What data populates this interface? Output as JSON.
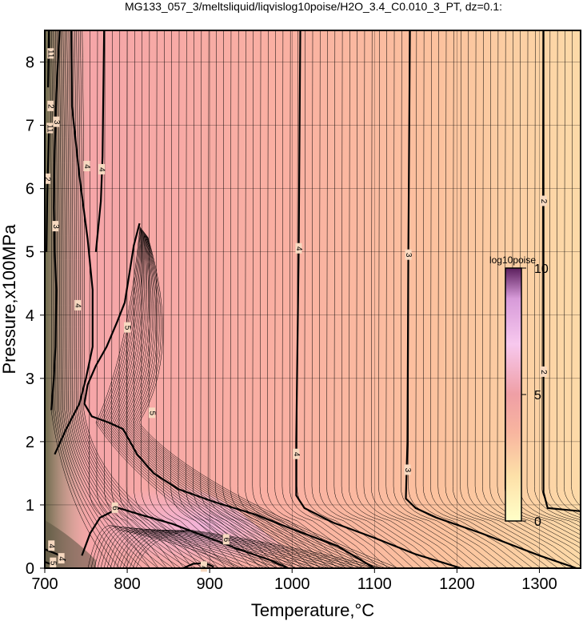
{
  "chart_data": {
    "type": "heatmap",
    "title": "MG133_057_3/meltsliquid/liqvislog10poise/H2O_3.4_C0.010_3_PT, dz=0.1:",
    "xlabel": "Temperature,°C",
    "ylabel": "Pressure,x100MPa",
    "xlim": [
      700,
      1350
    ],
    "ylim": [
      0,
      8.5
    ],
    "x_ticks": [
      "700",
      "800",
      "900",
      "1000",
      "1100",
      "1200",
      "1300"
    ],
    "y_ticks": [
      "0",
      "1",
      "2",
      "3",
      "4",
      "5",
      "6",
      "7",
      "8"
    ],
    "grid": true,
    "colorbar": {
      "title": "log10poise",
      "range": [
        0,
        10
      ],
      "tick_labels": [
        "0",
        "5",
        "10"
      ]
    },
    "contour_interval": 0.1,
    "major_contours": [
      {
        "level": "2",
        "points": [
          [
            1305,
            8.5
          ],
          [
            1305,
            4.0
          ],
          [
            1305,
            1.2
          ],
          [
            1310,
            0.95
          ],
          [
            1350,
            0.9
          ]
        ],
        "labels": [
          [
            1305,
            5.8
          ],
          [
            1305,
            3.1
          ]
        ]
      },
      {
        "level": "3",
        "points": [
          [
            1143,
            8.5
          ],
          [
            1141,
            5.0
          ],
          [
            1140,
            2.0
          ],
          [
            1138,
            1.1
          ],
          [
            1150,
            0.95
          ],
          [
            1175,
            0.8
          ],
          [
            1230,
            0.55
          ],
          [
            1300,
            0.2
          ],
          [
            1345,
            0.0
          ]
        ],
        "labels": [
          [
            1141,
            4.95
          ],
          [
            1140,
            1.55
          ]
        ]
      },
      {
        "level": "4",
        "points": [
          [
            1010,
            8.5
          ],
          [
            1008,
            5.0
          ],
          [
            1005,
            2.0
          ],
          [
            1005,
            1.15
          ],
          [
            1015,
            0.95
          ],
          [
            1050,
            0.72
          ],
          [
            1100,
            0.48
          ],
          [
            1150,
            0.22
          ],
          [
            1205,
            0.0
          ]
        ],
        "labels": [
          [
            1008,
            5.05
          ],
          [
            1005,
            1.8
          ]
        ]
      },
      {
        "level": "5",
        "points": [
          [
            815,
            5.45
          ],
          [
            812,
            5.3
          ],
          [
            808,
            5.1
          ],
          [
            802,
            4.6
          ],
          [
            797,
            4.2
          ],
          [
            788,
            3.9
          ],
          [
            775,
            3.5
          ],
          [
            762,
            3.2
          ],
          [
            752,
            2.9
          ],
          [
            748,
            2.6
          ],
          [
            757,
            2.4
          ],
          [
            778,
            2.3
          ],
          [
            795,
            2.2
          ],
          [
            812,
            1.8
          ],
          [
            832,
            1.5
          ],
          [
            862,
            1.25
          ],
          [
            905,
            1.05
          ],
          [
            955,
            0.85
          ],
          [
            1000,
            0.62
          ],
          [
            1055,
            0.35
          ],
          [
            1100,
            0.0
          ]
        ],
        "labels": [
          [
            800,
            3.8
          ],
          [
            830,
            2.45
          ]
        ]
      },
      {
        "level": "6",
        "points": [
          [
            745,
            0.2
          ],
          [
            755,
            0.55
          ],
          [
            767,
            0.8
          ],
          [
            790,
            0.95
          ],
          [
            815,
            0.85
          ],
          [
            855,
            0.7
          ],
          [
            895,
            0.5
          ],
          [
            935,
            0.3
          ],
          [
            975,
            0.12
          ],
          [
            995,
            0.0
          ]
        ],
        "labels": [
          [
            785,
            0.95
          ],
          [
            920,
            0.45
          ]
        ]
      },
      {
        "level": "3",
        "points": [
          [
            718,
            8.5
          ],
          [
            714,
            7.5
          ],
          [
            712,
            6.6
          ],
          [
            711,
            5.7
          ],
          [
            712,
            5.0
          ],
          [
            714,
            4.4
          ],
          [
            713,
            3.5
          ],
          [
            711,
            3.0
          ],
          [
            708,
            2.5
          ]
        ],
        "labels": [
          [
            714,
            7.05
          ],
          [
            713,
            5.4
          ]
        ]
      },
      {
        "level": "4",
        "points": [
          [
            732,
            8.5
          ],
          [
            733,
            7.3
          ],
          [
            742,
            6.2
          ],
          [
            752,
            5.2
          ],
          [
            758,
            4.4
          ],
          [
            758,
            3.5
          ],
          [
            750,
            3.0
          ],
          [
            742,
            2.6
          ],
          [
            726,
            2.2
          ],
          [
            712,
            1.8
          ]
        ],
        "labels": [
          [
            751,
            6.35
          ],
          [
            740,
            4.15
          ]
        ]
      },
      {
        "level": "4",
        "points": [
          [
            772,
            8.5
          ],
          [
            771,
            7.5
          ],
          [
            770,
            6.5
          ],
          [
            768,
            5.8
          ],
          [
            762,
            5.0
          ]
        ],
        "labels": [
          [
            769,
            6.3
          ]
        ]
      },
      {
        "level": "2",
        "points": [
          [
            705,
            6.9
          ],
          [
            703,
            5.9
          ],
          [
            702,
            5.0
          ]
        ],
        "labels": [
          [
            703,
            6.15
          ],
          [
            707,
            7.3
          ]
        ]
      },
      {
        "level": "11",
        "points": [
          [
            705,
            8.5
          ],
          [
            704,
            7.6
          ]
        ],
        "labels": [
          [
            707,
            8.13
          ],
          [
            706,
            6.95
          ]
        ]
      },
      {
        "level": "7",
        "points": [
          [
            868,
            0.0
          ],
          [
            880,
            0.07
          ],
          [
            895,
            0.08
          ],
          [
            905,
            0.02
          ]
        ],
        "labels": [
          [
            893,
            0.02
          ]
        ]
      },
      {
        "level": "4",
        "points": [
          [
            700,
            0.3
          ],
          [
            715,
            0.22
          ],
          [
            725,
            0.12
          ]
        ],
        "labels": [
          [
            708,
            0.35
          ],
          [
            720,
            0.15
          ]
        ]
      },
      {
        "level": "5",
        "points": [
          [
            700,
            0.1
          ],
          [
            712,
            0.04
          ]
        ],
        "labels": [
          [
            710,
            0.08
          ]
        ]
      }
    ]
  }
}
